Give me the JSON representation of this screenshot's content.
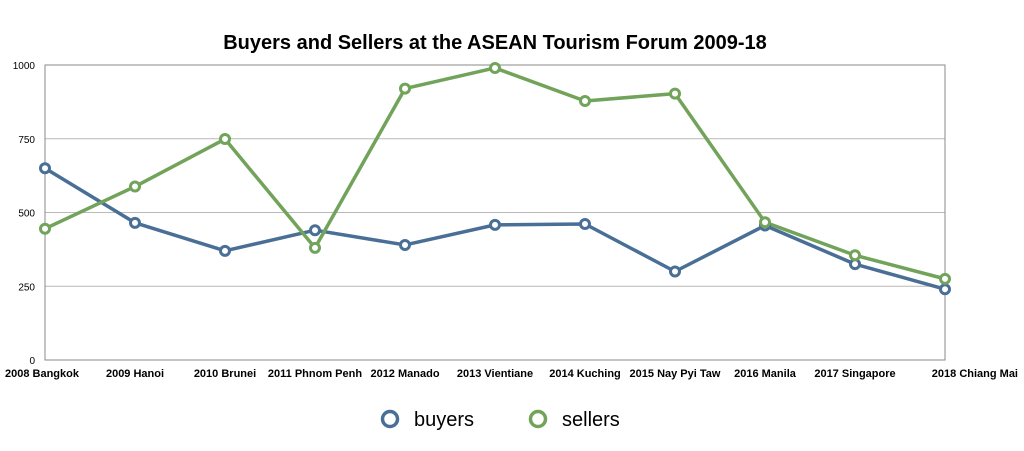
{
  "chart_data": {
    "type": "line",
    "title": "Buyers and Sellers at the ASEAN Tourism Forum 2009-18",
    "xlabel": "",
    "ylabel": "",
    "categories": [
      "2008 Bangkok",
      "2009 Hanoi",
      "2010 Brunei",
      "2011 Phnom Penh",
      "2012 Manado",
      "2013 Vientiane",
      "2014 Kuching",
      "2015 Nay Pyi Taw",
      "2016 Manila",
      "2017 Singapore",
      "2018 Chiang Mai"
    ],
    "ylim": [
      0,
      1000
    ],
    "yticks": [
      "0",
      "250",
      "500",
      "750",
      "1000"
    ],
    "grid": true,
    "legend_position": "bottom",
    "series": [
      {
        "name": "buyers",
        "color": "#4a6f96",
        "values": [
          650,
          465,
          370,
          440,
          390,
          458,
          461,
          300,
          456,
          325,
          240
        ]
      },
      {
        "name": "sellers",
        "color": "#72a35a",
        "values": [
          445,
          588,
          749,
          380,
          920,
          990,
          878,
          903,
          467,
          355,
          275
        ]
      }
    ]
  }
}
